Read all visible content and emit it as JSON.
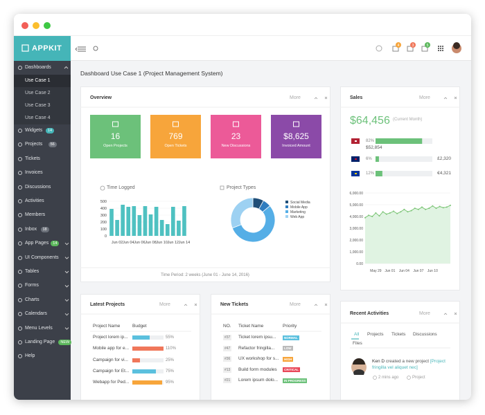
{
  "sidebar": {
    "brand": "APPKIT",
    "items": [
      {
        "label": "Dashboards",
        "expanded": true,
        "sub": [
          {
            "label": "Use Case 1",
            "active": true
          },
          {
            "label": "Use Case 2"
          },
          {
            "label": "Use Case 3"
          },
          {
            "label": "Use Case 4"
          }
        ]
      },
      {
        "label": "Widgets",
        "badge": "14",
        "badge_color": "#45b5b8"
      },
      {
        "label": "Projects",
        "badge": "56",
        "badge_color": "#6c717a"
      },
      {
        "label": "Tickets"
      },
      {
        "label": "Invoices"
      },
      {
        "label": "Discussions"
      },
      {
        "label": "Activities"
      },
      {
        "label": "Members"
      },
      {
        "label": "Inbox",
        "badge": "18",
        "badge_color": "#6c717a"
      },
      {
        "label": "App Pages",
        "badge": "14",
        "badge_color": "#5cb85c",
        "arrow": true
      },
      {
        "label": "UI Components",
        "arrow": true
      },
      {
        "label": "Tables",
        "arrow": true
      },
      {
        "label": "Forms",
        "arrow": true
      },
      {
        "label": "Charts",
        "arrow": true
      },
      {
        "label": "Calendars",
        "arrow": true
      },
      {
        "label": "Menu Levels",
        "arrow": true
      },
      {
        "label": "Landing Page",
        "badge": "NEW",
        "badge_color": "#5cb85c"
      },
      {
        "label": "Help"
      }
    ]
  },
  "header": {
    "badges": [
      {
        "text": "4",
        "color": "#f7a53b"
      },
      {
        "text": "3",
        "color": "#f0775a"
      },
      {
        "text": "5",
        "color": "#5cb85c"
      }
    ]
  },
  "page_title": "Dashboard Use Case 1 (Project Management System)",
  "panel_more": "More",
  "overview": {
    "title": "Overview",
    "cards": [
      {
        "value": "16",
        "label": "Open Projects",
        "color": "#6cc17a"
      },
      {
        "value": "769",
        "label": "Open Tickets",
        "color": "#f7a53b"
      },
      {
        "value": "23",
        "label": "New Discussions",
        "color": "#ec5a98"
      },
      {
        "value": "$8,625",
        "label": "Invoiced Amount",
        "color": "#8b4aa8"
      }
    ],
    "time_period": "Time Period: 2 weeks (June 01 - June 14, 2016)"
  },
  "time_logged": {
    "type": "bar",
    "title": "Time Logged",
    "color": "#4fc1c1",
    "categories": [
      null,
      "Jun 02",
      null,
      "Jun 04",
      null,
      "Jun 06",
      null,
      "Jun 08",
      null,
      "Jun 10",
      null,
      "Jun 12",
      null,
      "Jun 14"
    ],
    "values": [
      390,
      230,
      450,
      420,
      430,
      300,
      430,
      310,
      420,
      230,
      170,
      420,
      220,
      430
    ],
    "ylim": [
      0,
      500
    ],
    "yticks": [
      0,
      100,
      200,
      300,
      400,
      500
    ]
  },
  "project_types": {
    "type": "pie",
    "title": "Project Types",
    "series": [
      {
        "name": "Social Media",
        "color": "#1f4e78",
        "value": 8
      },
      {
        "name": "Mobile App",
        "color": "#2f7dbf",
        "value": 6
      },
      {
        "name": "Marketing",
        "color": "#55aee6",
        "value": 55
      },
      {
        "name": "Web App",
        "color": "#9dd1f2",
        "value": 31
      }
    ]
  },
  "sales": {
    "title": "Sales",
    "total": "$64,456",
    "total_note": "(Current Month)",
    "shares": [
      82,
      6,
      12
    ],
    "share_labels": [
      "82%",
      "6%",
      "12%"
    ],
    "amounts": [
      "$52,854",
      "£2,320",
      "€4,321"
    ],
    "bar_color": "#6cc17a",
    "chart": {
      "type": "line",
      "color": "#7cc576",
      "categories": [
        null,
        null,
        null,
        "May 29",
        null,
        null,
        null,
        "Jun 01",
        null,
        null,
        null,
        "Jun 04",
        null,
        null,
        null,
        "Jun 07",
        null,
        null,
        null,
        "Jun 10",
        null,
        null,
        null,
        null,
        null
      ],
      "values": [
        3900,
        4100,
        4000,
        4300,
        4050,
        4400,
        4200,
        4300,
        4450,
        4250,
        4400,
        4600,
        4400,
        4500,
        4700,
        4600,
        4800,
        4600,
        4700,
        4900,
        4700,
        4850,
        4750,
        4800,
        4950
      ],
      "ylim": [
        0,
        6000
      ],
      "yticks": [
        {
          "value": 0,
          "label": "0.00"
        },
        {
          "value": 1000,
          "label": "1,000.00"
        },
        {
          "value": 2000,
          "label": "2,000.00"
        },
        {
          "value": 3000,
          "label": "3,000.00"
        },
        {
          "value": 4000,
          "label": "4,000.00"
        },
        {
          "value": 5000,
          "label": "5,000.00"
        },
        {
          "value": 6000,
          "label": "6,000.00"
        }
      ]
    }
  },
  "latest_projects": {
    "title": "Latest Projects",
    "columns": [
      "Project Name",
      "Budget"
    ],
    "names": [
      "Project lorem ip...",
      "Mobile app for e...",
      "Campaign for vi...",
      "Campaign for Et...",
      "Webapp for Ped..."
    ],
    "values": [
      55,
      110,
      25,
      75,
      95
    ],
    "value_labels": [
      "55%",
      "110%",
      "25%",
      "75%",
      "95%"
    ],
    "colors": [
      "#5bc0de",
      "#f0775a",
      "#f0775a",
      "#5bc0de",
      "#f7a53b"
    ]
  },
  "new_tickets": {
    "title": "New Tickets",
    "columns": [
      "NO.",
      "Ticket Name",
      "Priority"
    ],
    "rows": [
      {
        "no": "#37",
        "name": "Ticket lorem ipsu...",
        "priority": "NORMAL",
        "color": "#5bc0de"
      },
      {
        "no": "#47",
        "name": "Refactor fringilla...",
        "priority": "LOW",
        "color": "#bbbbbb"
      },
      {
        "no": "#36",
        "name": "UX workshop for s...",
        "priority": "HIGH",
        "color": "#f7a53b"
      },
      {
        "no": "#13",
        "name": "Build form modules",
        "priority": "CRITICAL",
        "color": "#e9495a"
      },
      {
        "no": "#21",
        "name": "Lorem ipsum dolo...",
        "priority": "IN PROGRESS",
        "color": "#6cc17a"
      }
    ]
  },
  "recent_activities": {
    "title": "Recent Activities",
    "tabs": [
      "All",
      "Projects",
      "Tickets",
      "Discussions",
      "Files"
    ],
    "user": "Ken D",
    "action": "created a new project",
    "link": "[Project fringilla vel aliquet nec]",
    "time": "2 mins ago",
    "tag": "Project"
  }
}
